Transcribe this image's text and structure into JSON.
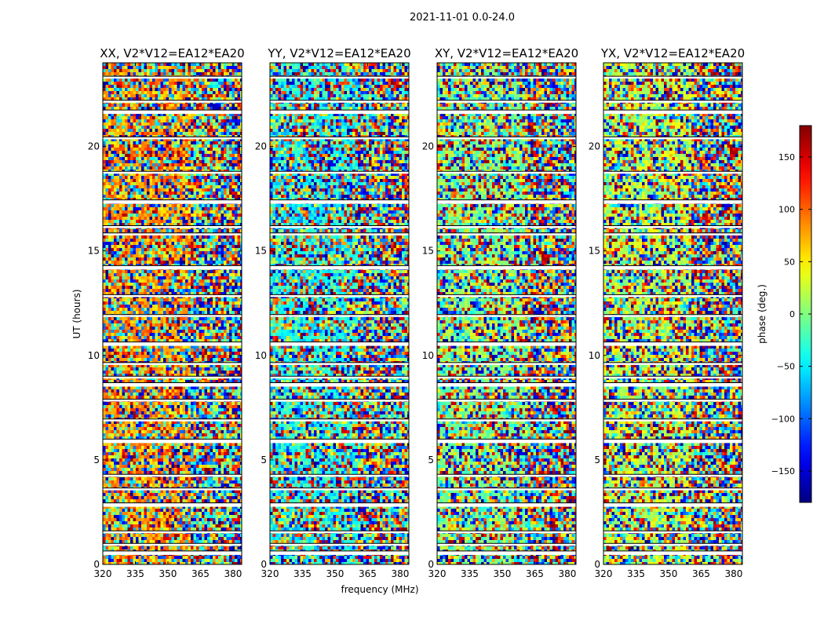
{
  "figure_title": "2021-11-01 0.0-24.0",
  "chart_data": {
    "type": "heatmap",
    "xlabel": "frequency (MHz)",
    "ylabel": "UT (hours)",
    "xlim": [
      320,
      384
    ],
    "ylim": [
      0,
      24
    ],
    "x_ticks": [
      "320",
      "335",
      "350",
      "365",
      "380"
    ],
    "y_ticks": [
      "0",
      "5",
      "10",
      "15",
      "20"
    ],
    "y_tick_values": [
      0,
      5,
      10,
      15,
      20
    ],
    "x_tick_values": [
      320,
      335,
      350,
      365,
      380
    ],
    "colormap": "jet",
    "colorbar": {
      "label": "phase (deg.)",
      "range": [
        -180,
        180
      ],
      "ticks": [
        "−150",
        "−100",
        "−50",
        "0",
        "50",
        "100",
        "150"
      ],
      "tick_values": [
        -150,
        -100,
        -50,
        0,
        50,
        100,
        150
      ],
      "placement": "right"
    },
    "panels": [
      {
        "title": "XX, V2*V12=EA12*EA20",
        "mean_phase_deg": 80
      },
      {
        "title": "YY, V2*V12=EA12*EA20",
        "mean_phase_deg": -40
      },
      {
        "title": "XY, V2*V12=EA12*EA20",
        "mean_phase_deg": 0
      },
      {
        "title": "YX, V2*V12=EA12*EA20",
        "mean_phase_deg": 20
      }
    ],
    "flagged_utc_hours": [
      0.55,
      0.95,
      1.55,
      2.85,
      3.6,
      4.25,
      5.9,
      6.9,
      7.85,
      8.6,
      8.95,
      9.6,
      10.55,
      11.9,
      12.85,
      14.2,
      15.8,
      16.15,
      17.35,
      18.75,
      20.4,
      21.65,
      22.15,
      23.3
    ]
  }
}
